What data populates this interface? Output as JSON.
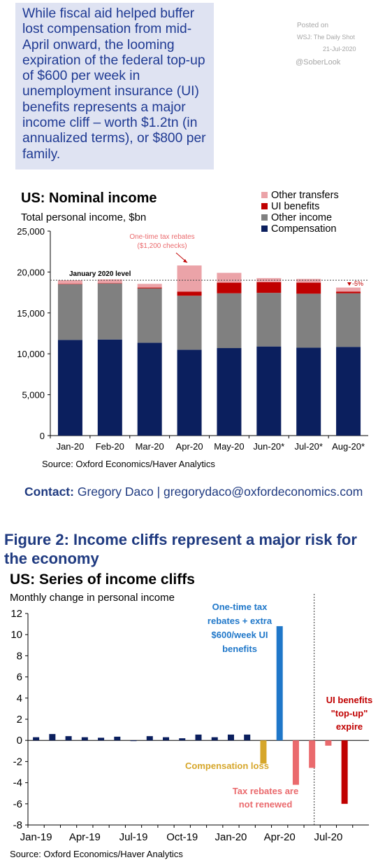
{
  "callout": {
    "text": "While fiscal aid helped buffer lost compensation from mid-April onward, the looming expiration of the federal top-up of $600 per week in unemployment insurance (UI) benefits represents a major income cliff – worth $1.2tn (in annualized terms), or $800 per family."
  },
  "posted": {
    "label": "Posted on",
    "source": "WSJ: The Daily Shot",
    "date": "21-Jul-2020",
    "handle": "@SoberLook"
  },
  "contact": {
    "label": "Contact:",
    "text": "Gregory Daco | gregorydaco@oxfordeconomics.com"
  },
  "figure2": {
    "title": "Figure 2: Income cliffs represent a major risk for the economy"
  },
  "colors": {
    "compensation": "#0b1f5e",
    "other_income": "#808080",
    "ui_benefits": "#c00000",
    "other_transfers": "#eba3a8",
    "blue": "#1f77c9",
    "gold": "#d6a62a",
    "light_red": "#ea6a6d",
    "dark_red": "#c00000"
  },
  "chart_data": [
    {
      "type": "bar",
      "stacked": true,
      "title": "US: Nominal income",
      "subtitle": "Total personal income, $bn",
      "categories": [
        "Jan-20",
        "Feb-20",
        "Mar-20",
        "Apr-20",
        "May-20",
        "Jun-20*",
        "Jul-20*",
        "Aug-20*"
      ],
      "series": [
        {
          "name": "Compensation",
          "values": [
            11700,
            11750,
            11350,
            10500,
            10700,
            10900,
            10750,
            10850
          ]
        },
        {
          "name": "Other income",
          "values": [
            6800,
            6850,
            6650,
            6600,
            6700,
            6550,
            6600,
            6550
          ]
        },
        {
          "name": "UI benefits",
          "values": [
            50,
            50,
            100,
            500,
            1300,
            1300,
            1350,
            200
          ]
        },
        {
          "name": "Other transfers",
          "values": [
            450,
            450,
            450,
            3200,
            1200,
            500,
            450,
            500
          ]
        }
      ],
      "legend_order": [
        "Other transfers",
        "UI benefits",
        "Other income",
        "Compensation"
      ],
      "ylim": [
        0,
        25000
      ],
      "yticks": [
        "0",
        "5,000",
        "10,000",
        "15,000",
        "20,000",
        "25,000"
      ],
      "reference_line": {
        "label": "January 2020 level",
        "value": 19000
      },
      "annotations": [
        {
          "text": "One-time tax rebates ($1,200 checks)",
          "lines": [
            "One-time tax rebates",
            "($1,200 checks)"
          ]
        },
        {
          "text": "-5%"
        }
      ],
      "source": "Source: Oxford Economics/Haver Analytics"
    },
    {
      "type": "bar",
      "title": "US: Series of income cliffs",
      "subtitle": "Monthly change in personal income",
      "x": [
        "Jan-19",
        "Feb-19",
        "Mar-19",
        "Apr-19",
        "May-19",
        "Jun-19",
        "Jul-19",
        "Aug-19",
        "Sep-19",
        "Oct-19",
        "Nov-19",
        "Dec-19",
        "Jan-20",
        "Feb-20",
        "Mar-20",
        "Apr-20",
        "May-20",
        "Jun-20",
        "Jul-20",
        "Aug-20",
        "Sep-20"
      ],
      "values": [
        0.3,
        0.6,
        0.4,
        0.3,
        0.25,
        0.35,
        -0.05,
        0.4,
        0.3,
        0.2,
        0.55,
        0.3,
        0.55,
        0.55,
        -2.2,
        10.8,
        -4.2,
        -2.6,
        -0.5,
        -6.0,
        null
      ],
      "xticks": [
        "Jan-19",
        "Apr-19",
        "Jul-19",
        "Oct-19",
        "Jan-20",
        "Apr-20",
        "Jul-20"
      ],
      "ylim": [
        -8,
        12
      ],
      "yticks": [
        "-8",
        "-6",
        "-4",
        "-2",
        "0",
        "2",
        "4",
        "6",
        "8",
        "10",
        "12"
      ],
      "annotations": [
        {
          "text": "One-time tax rebates + extra $600/week UI benefits",
          "lines": [
            "One-time tax",
            "rebates + extra",
            "$600/week UI",
            "benefits"
          ]
        },
        {
          "text": "Compensation loss",
          "lines": [
            "Compensation loss"
          ]
        },
        {
          "text": "Tax rebates are not renewed",
          "lines": [
            "Tax rebates are",
            "not renewed"
          ]
        },
        {
          "text": "UI benefits \"top-up\" expire",
          "lines": [
            "UI benefits",
            "\"top-up\"",
            "expire"
          ]
        }
      ],
      "source": "Source: Oxford Economics/Haver Analytics"
    }
  ]
}
